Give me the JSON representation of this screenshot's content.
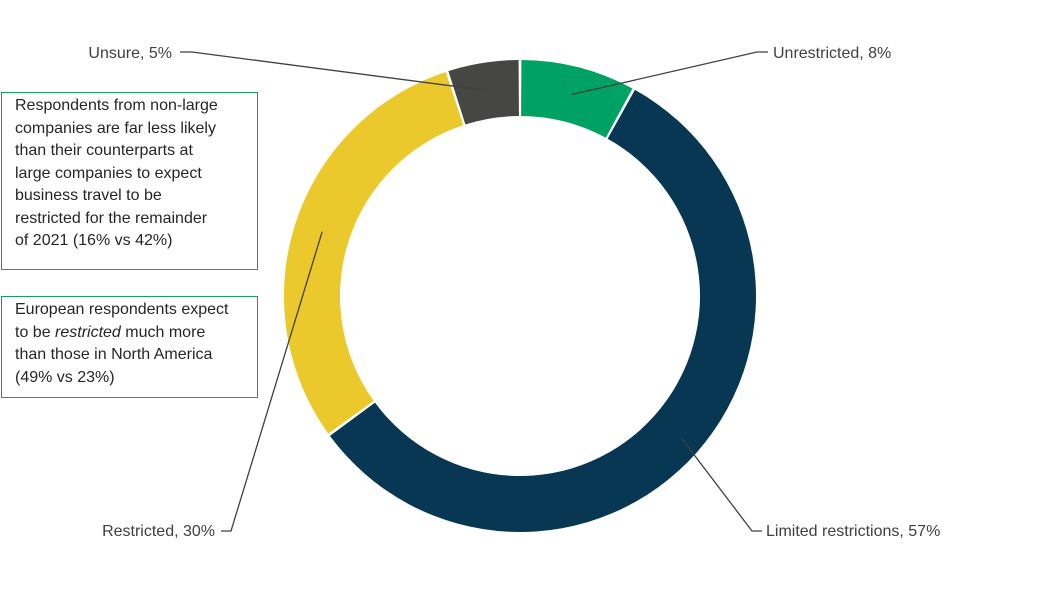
{
  "chart_data": {
    "type": "donut",
    "title": "",
    "slices": [
      {
        "label": "Unrestricted",
        "value": 8,
        "display": "Unrestricted, 8%",
        "color": "#00a263"
      },
      {
        "label": "Limited restrictions",
        "value": 57,
        "display": "Limited restrictions, 57%",
        "color": "#073753"
      },
      {
        "label": "Restricted",
        "value": 30,
        "display": "Restricted, 30%",
        "color": "#ebc92c"
      },
      {
        "label": "Unsure",
        "value": 5,
        "display": "Unsure, 5%",
        "color": "#464644"
      }
    ],
    "legend": "none"
  },
  "notes": {
    "note1": {
      "lines": [
        "Respondents from non-large",
        "companies are far less likely",
        "than their counterparts at",
        "large companies to expect",
        "business travel to be",
        "restricted for the remainder",
        "of 2021 (16% vs 42%)"
      ]
    },
    "note2": {
      "line1": "European respondents expect",
      "line2_prefix": "to be ",
      "line2_emphasis": "restricted",
      "line2_suffix": " much more",
      "line3": "than those in North America",
      "line4": "(49% vs 23%)"
    }
  },
  "colors": {
    "note_border": "#17a05a",
    "leader": "#404040",
    "label_text": "#404040"
  }
}
